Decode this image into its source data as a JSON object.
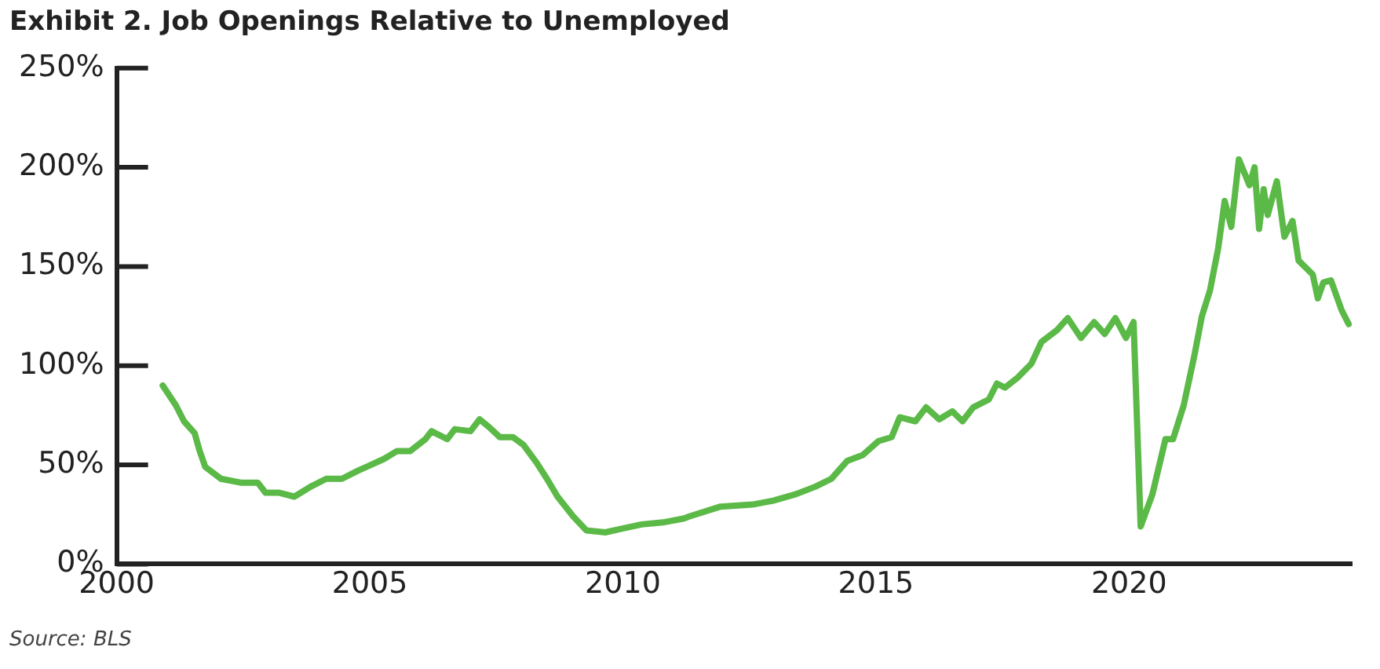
{
  "chart_data": {
    "type": "line",
    "title": "Exhibit 2. Job Openings Relative to Unemployed",
    "x": [
      2000.91,
      2001.17,
      2001.33,
      2001.54,
      2001.64,
      2001.75,
      2002.06,
      2002.47,
      2002.79,
      2002.94,
      2003.2,
      2003.51,
      2003.83,
      2004.14,
      2004.45,
      2004.76,
      2005.02,
      2005.28,
      2005.54,
      2005.8,
      2006.1,
      2006.22,
      2006.53,
      2006.68,
      2006.99,
      2007.17,
      2007.36,
      2007.57,
      2007.83,
      2008.04,
      2008.3,
      2008.5,
      2008.71,
      2009.02,
      2009.28,
      2009.65,
      2010.01,
      2010.37,
      2010.79,
      2011.21,
      2011.31,
      2011.93,
      2012.56,
      2012.97,
      2013.39,
      2013.8,
      2014.12,
      2014.43,
      2014.74,
      2015.05,
      2015.31,
      2015.47,
      2015.78,
      2015.99,
      2016.25,
      2016.51,
      2016.71,
      2016.92,
      2017.23,
      2017.39,
      2017.55,
      2017.8,
      2018.07,
      2018.27,
      2018.58,
      2018.79,
      2019.05,
      2019.31,
      2019.52,
      2019.73,
      2019.94,
      2020.09,
      2020.23,
      2020.46,
      2020.72,
      2020.87,
      2021.08,
      2021.29,
      2021.44,
      2021.6,
      2021.76,
      2021.89,
      2022.02,
      2022.17,
      2022.38,
      2022.48,
      2022.57,
      2022.66,
      2022.74,
      2022.92,
      2023.07,
      2023.23,
      2023.35,
      2023.63,
      2023.73,
      2023.84,
      2023.99,
      2024.2,
      2024.34
    ],
    "series": [
      {
        "color": "#5bb947",
        "values": [
          90,
          80,
          72,
          66,
          57,
          49,
          43,
          41,
          41,
          36,
          36,
          34,
          39,
          43,
          43,
          47,
          50,
          53,
          57,
          57,
          63,
          67,
          63,
          68,
          67,
          73,
          69,
          64,
          64,
          60,
          51,
          43,
          34,
          24,
          17,
          16,
          18,
          20,
          21,
          23,
          24,
          29,
          30,
          32,
          35,
          39,
          43,
          52,
          55,
          62,
          64,
          74,
          72,
          79,
          73,
          77,
          72,
          79,
          83,
          91,
          89,
          94,
          101,
          112,
          118,
          124,
          114,
          122,
          116,
          124,
          114,
          122,
          19,
          35,
          63,
          63,
          80,
          105,
          125,
          138,
          159,
          183,
          170,
          204,
          191,
          200,
          169,
          189,
          176,
          193,
          165,
          173,
          153,
          146,
          134,
          142,
          143,
          128,
          121
        ]
      }
    ],
    "xlim": [
      2000,
      2024.4
    ],
    "xticks": [
      2000,
      2005,
      2010,
      2015,
      2020
    ],
    "ylim": [
      0,
      250
    ],
    "yticks": [
      {
        "value": 0,
        "label": "0%"
      },
      {
        "value": 50,
        "label": "50%"
      },
      {
        "value": 100,
        "label": "100%"
      },
      {
        "value": 150,
        "label": "150%"
      },
      {
        "value": 200,
        "label": "200%"
      },
      {
        "value": 250,
        "label": "250%"
      }
    ],
    "grid": false,
    "legend": false,
    "marker": "none",
    "line_style": "solid",
    "annotations": [
      "Source: BLS"
    ]
  }
}
